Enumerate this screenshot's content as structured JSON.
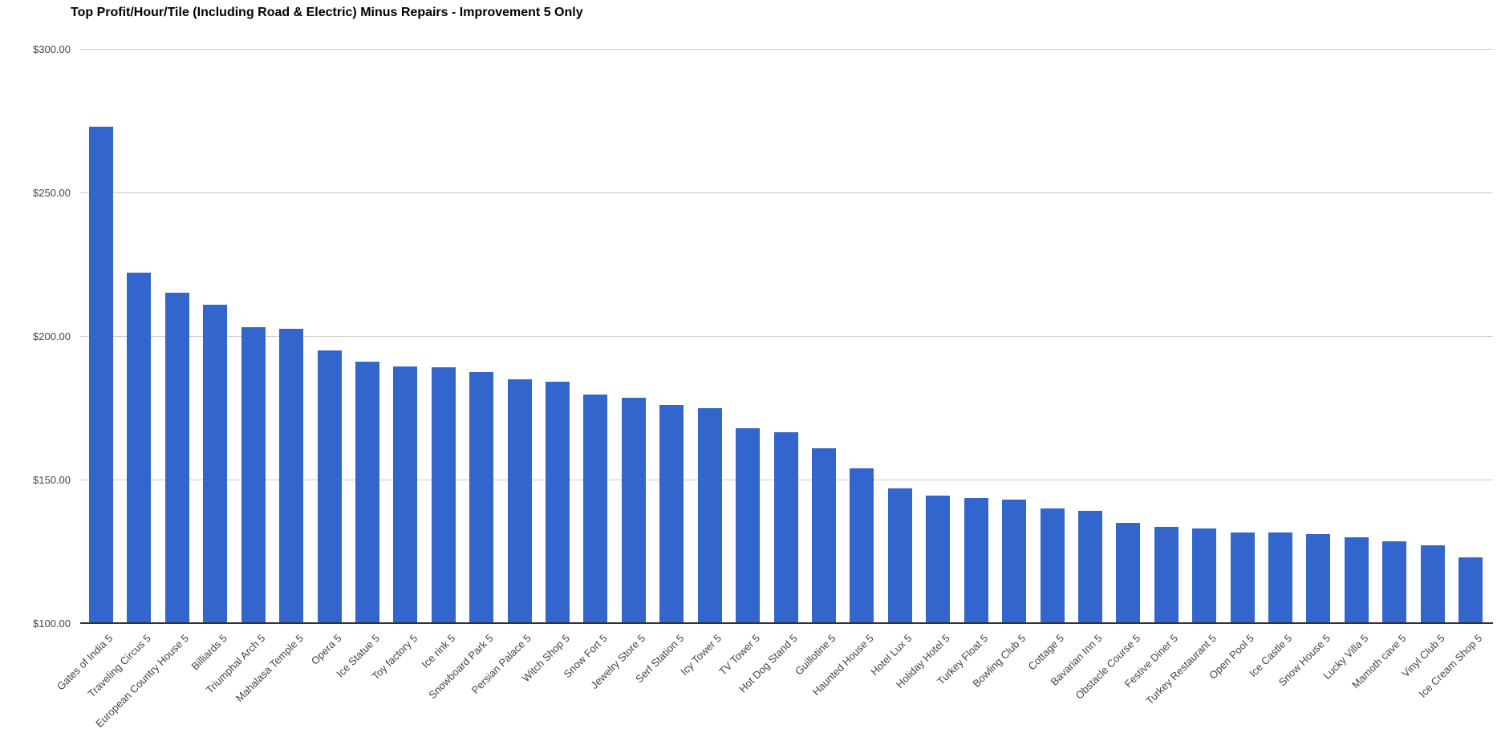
{
  "page": {
    "background": "#ffffff"
  },
  "chart_data": {
    "type": "bar",
    "title": "Top Profit/Hour/Tile (Including Road & Electric) Minus Repairs - Improvement 5 Only",
    "xlabel": "",
    "ylabel": "",
    "legend_position": "none",
    "grid": true,
    "ylim": [
      100,
      300
    ],
    "y_ticks": [
      {
        "label": "$300.00",
        "value": 300
      },
      {
        "label": "$250.00",
        "value": 250
      },
      {
        "label": "$200.00",
        "value": 200
      },
      {
        "label": "$150.00",
        "value": 150
      },
      {
        "label": "$100.00",
        "value": 100
      }
    ],
    "value_unit": "USD per hour per tile",
    "bar_color": "#3366cc",
    "gridline_color": "#cccccc",
    "baseline_color": "#333333",
    "axis_text_color": "#444444",
    "title_color": "#000000",
    "categories": [
      "Gates of India 5",
      "Traveling Circus 5",
      "European Country House 5",
      "Billiards 5",
      "Triumphal Arch 5",
      "Mahalasa Temple 5",
      "Opera 5",
      "Ice Statue 5",
      "Toy factory 5",
      "Ice rink 5",
      "Snowboard Park 5",
      "Persian Palace 5",
      "Witch Shop 5",
      "Snow Fort 5",
      "Jewelry Store 5",
      "Serf Station 5",
      "Icy Tower 5",
      "TV Tower 5",
      "Hot Dog Stand 5",
      "Guillotine 5",
      "Haunted House 5",
      "Hotel Lux 5",
      "Holiday Hotel 5",
      "Turkey Float 5",
      "Bowling Club 5",
      "Cottage 5",
      "Bavarian Inn 5",
      "Obstacle Course 5",
      "Festive Diner 5",
      "Turkey Restaurant 5",
      "Open Pool 5",
      "Ice Castle 5",
      "Snow House 5",
      "Lucky Villa 5",
      "Mamoth cave 5",
      "Vinyl Club 5",
      "Ice Cream Shop 5"
    ],
    "values": [
      273,
      222,
      215,
      211,
      203,
      202.5,
      195,
      191,
      189.5,
      189,
      187.5,
      185,
      184,
      179.5,
      178.5,
      176,
      175,
      168,
      166.5,
      161,
      154,
      147,
      144.5,
      143.5,
      143,
      140,
      139,
      135,
      133.5,
      133,
      131.5,
      131.5,
      131,
      130,
      128.5,
      127,
      123
    ]
  }
}
